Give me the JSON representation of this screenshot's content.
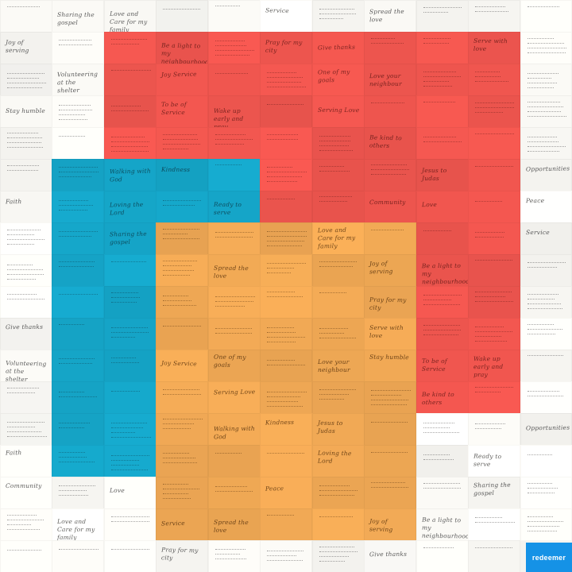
{
  "colors": {
    "paper": "#fbfaf6",
    "red": "#f0564f",
    "blue": "#15a6c9",
    "orange": "#f1a955",
    "ink": "#3a3a3a",
    "logo": "#1592e6"
  },
  "brand": {
    "label": "redeemer"
  },
  "notes": [
    "Sharing the gospel",
    "Love and Care for my family",
    "Service",
    "Spread the love",
    "Joy of serving",
    "Be a light to my neighbourhood",
    "Pray for my city",
    "Give thanks",
    "Serve with love",
    "Volunteering at the shelter",
    "Joy Service",
    "One of my goals",
    "Love your neighbour",
    "Stay humble",
    "To be of Service",
    "Wake up early and pray",
    "Serving Love",
    "Be kind to others",
    "Walking with God",
    "Kindness",
    "Jesus to Judas",
    "Opportunities",
    "Faith",
    "Loving the Lord",
    "Ready to serve",
    "Community",
    "Love",
    "Peace"
  ]
}
